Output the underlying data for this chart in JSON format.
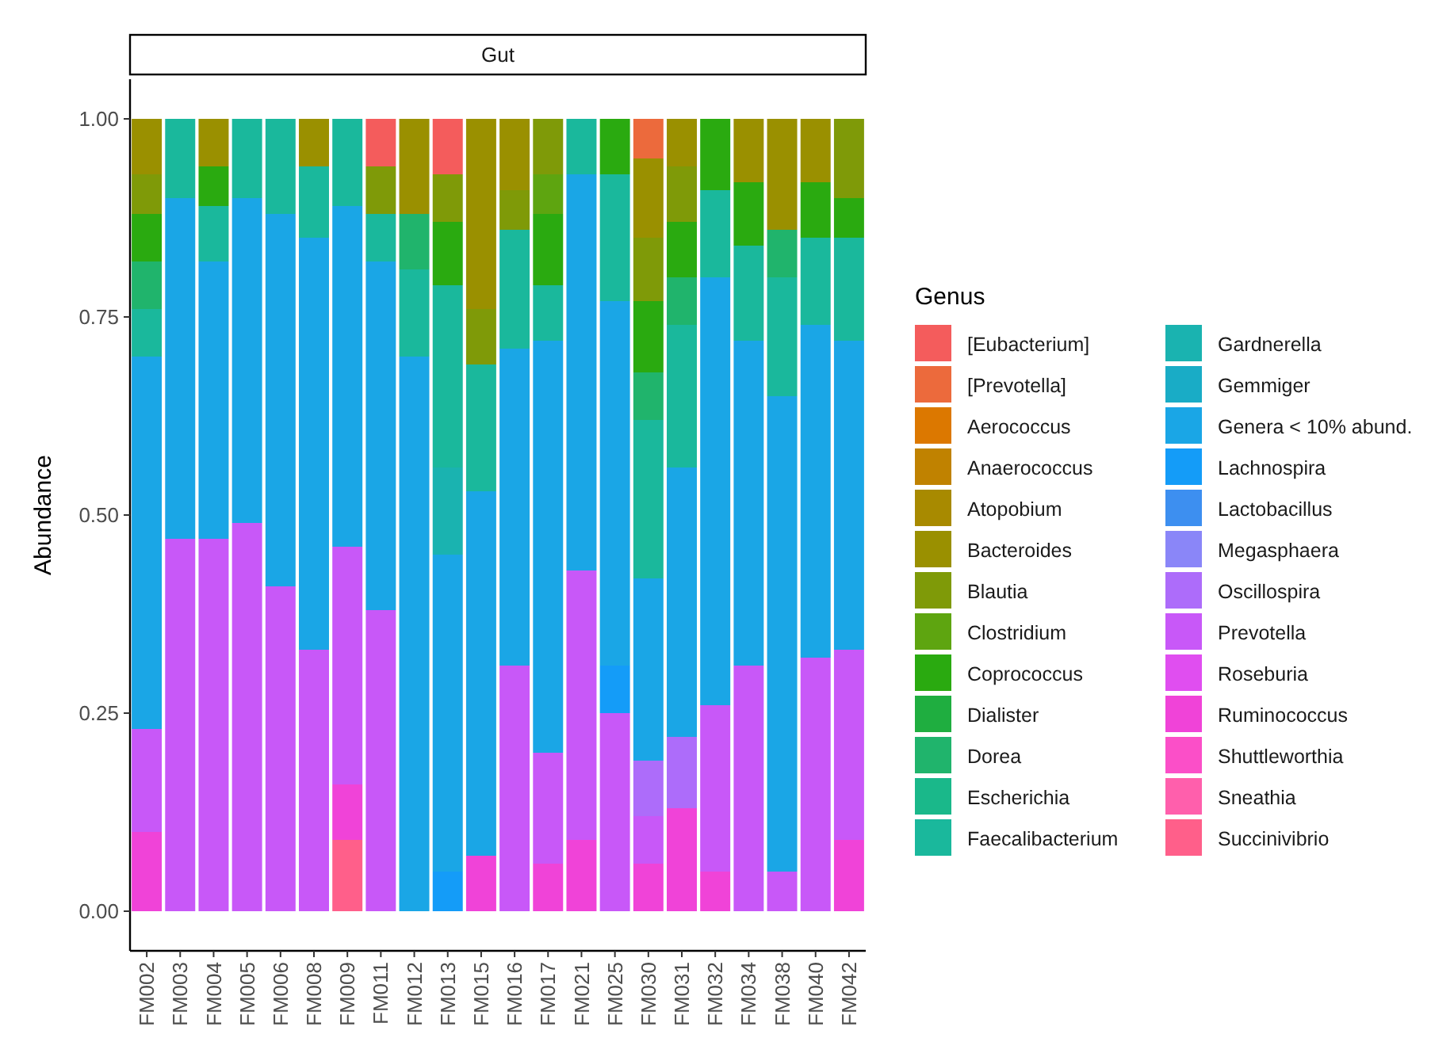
{
  "chart_data": {
    "type": "bar",
    "title": "Gut",
    "ylabel": "Abundance",
    "legend_title": "Genus",
    "legend": "right",
    "stacked": true,
    "categories": [
      "FM002",
      "FM003",
      "FM004",
      "FM005",
      "FM006",
      "FM008",
      "FM009",
      "FM011",
      "FM012",
      "FM013",
      "FM015",
      "FM016",
      "FM017",
      "FM021",
      "FM025",
      "FM030",
      "FM031",
      "FM032",
      "FM034",
      "FM038",
      "FM040",
      "FM042"
    ],
    "ylim": [
      -0.05,
      1.05
    ],
    "yticks": [
      {
        "value": 0,
        "label": "0.00"
      },
      {
        "value": 0.25,
        "label": "0.25"
      },
      {
        "value": 0.5,
        "label": "0.50"
      },
      {
        "value": 0.75,
        "label": "0.75"
      },
      {
        "value": 1,
        "label": "1.00"
      }
    ],
    "series": [
      {
        "name": "Succinivibrio",
        "color": "#ff5f8a",
        "values": [
          null,
          null,
          null,
          null,
          null,
          null,
          0.09,
          null,
          null,
          null,
          null,
          null,
          null,
          null,
          null,
          null,
          null,
          null,
          null,
          null,
          null,
          null
        ]
      },
      {
        "name": "Sneathia",
        "color": "#ff5fac",
        "values": [
          null,
          null,
          null,
          null,
          null,
          null,
          null,
          null,
          null,
          null,
          null,
          null,
          null,
          null,
          null,
          null,
          null,
          null,
          null,
          null,
          null,
          null
        ]
      },
      {
        "name": "Shuttleworthia",
        "color": "#fb4fc8",
        "values": [
          null,
          null,
          null,
          null,
          null,
          null,
          null,
          null,
          null,
          null,
          null,
          null,
          null,
          null,
          null,
          null,
          null,
          null,
          null,
          null,
          null,
          null
        ]
      },
      {
        "name": "Ruminococcus",
        "color": "#f043d8",
        "values": [
          0.1,
          null,
          null,
          null,
          null,
          null,
          0.07,
          null,
          null,
          null,
          0.07,
          null,
          0.06,
          0.09,
          null,
          0.06,
          0.13,
          0.05,
          null,
          null,
          null,
          0.09
        ]
      },
      {
        "name": "Roseburia",
        "color": "#e04ef0",
        "values": [
          null,
          null,
          null,
          null,
          null,
          null,
          null,
          null,
          null,
          null,
          null,
          null,
          null,
          null,
          null,
          null,
          null,
          null,
          null,
          null,
          null,
          null
        ]
      },
      {
        "name": "Prevotella",
        "color": "#c858f8",
        "values": [
          0.13,
          0.47,
          0.47,
          0.49,
          0.41,
          0.33,
          0.3,
          0.38,
          null,
          null,
          null,
          0.31,
          0.14,
          0.34,
          0.25,
          0.06,
          null,
          0.21,
          0.31,
          0.05,
          0.32,
          0.24
        ]
      },
      {
        "name": "Oscillospira",
        "color": "#ad6cfa",
        "values": [
          null,
          null,
          null,
          null,
          null,
          null,
          null,
          null,
          null,
          null,
          null,
          null,
          null,
          null,
          null,
          0.07,
          0.09,
          null,
          null,
          null,
          null,
          null
        ]
      },
      {
        "name": "Megasphaera",
        "color": "#8a86f8",
        "values": [
          null,
          null,
          null,
          null,
          null,
          null,
          null,
          null,
          null,
          null,
          null,
          null,
          null,
          null,
          null,
          null,
          null,
          null,
          null,
          null,
          null,
          null
        ]
      },
      {
        "name": "Lactobacillus",
        "color": "#3d8ff0",
        "values": [
          null,
          null,
          null,
          null,
          null,
          null,
          null,
          null,
          null,
          null,
          null,
          null,
          null,
          null,
          null,
          null,
          null,
          null,
          null,
          null,
          null,
          null
        ]
      },
      {
        "name": "Lachnospira",
        "color": "#149cf8",
        "values": [
          null,
          null,
          null,
          null,
          null,
          null,
          null,
          null,
          null,
          0.05,
          null,
          null,
          null,
          null,
          0.06,
          null,
          null,
          null,
          null,
          null,
          null,
          null
        ]
      },
      {
        "name": "Genera < 10% abund.",
        "color": "#1aa6e6",
        "values": [
          0.47,
          0.43,
          0.35,
          0.41,
          0.47,
          0.52,
          0.43,
          0.44,
          0.7,
          0.4,
          0.46,
          0.4,
          0.52,
          0.5,
          0.46,
          0.23,
          0.34,
          0.54,
          0.41,
          0.6,
          0.42,
          0.39
        ]
      },
      {
        "name": "Gemmiger",
        "color": "#19acc6",
        "values": [
          null,
          null,
          null,
          null,
          null,
          null,
          null,
          null,
          null,
          null,
          null,
          null,
          null,
          null,
          null,
          null,
          null,
          null,
          null,
          null,
          null,
          null
        ]
      },
      {
        "name": "Gardnerella",
        "color": "#1ab3b0",
        "values": [
          null,
          null,
          null,
          null,
          null,
          null,
          null,
          null,
          null,
          0.11,
          null,
          null,
          null,
          null,
          null,
          null,
          null,
          null,
          null,
          null,
          null,
          null
        ]
      },
      {
        "name": "Faecalibacterium",
        "color": "#1ab89c",
        "values": [
          0.06,
          0.1,
          0.07,
          0.1,
          0.12,
          0.09,
          0.11,
          0.06,
          0.11,
          0.23,
          0.16,
          0.15,
          0.07,
          0.07,
          0.16,
          0.2,
          0.18,
          0.11,
          0.12,
          0.15,
          0.11,
          0.13
        ]
      },
      {
        "name": "Escherichia",
        "color": "#1ab88a",
        "values": [
          null,
          null,
          null,
          null,
          null,
          null,
          null,
          null,
          null,
          null,
          null,
          null,
          null,
          null,
          null,
          null,
          null,
          null,
          null,
          null,
          null,
          null
        ]
      },
      {
        "name": "Dorea",
        "color": "#20b46c",
        "values": [
          0.06,
          null,
          null,
          null,
          null,
          null,
          null,
          null,
          0.07,
          null,
          null,
          null,
          null,
          null,
          null,
          0.06,
          0.06,
          null,
          null,
          0.06,
          null,
          null
        ]
      },
      {
        "name": "Dialister",
        "color": "#1fae40",
        "values": [
          null,
          null,
          null,
          null,
          null,
          null,
          null,
          null,
          null,
          null,
          null,
          null,
          null,
          null,
          null,
          null,
          null,
          null,
          null,
          null,
          null,
          null
        ]
      },
      {
        "name": "Coprococcus",
        "color": "#2aaa10",
        "values": [
          0.06,
          null,
          0.05,
          null,
          null,
          null,
          null,
          null,
          null,
          0.08,
          null,
          null,
          0.09,
          null,
          0.07,
          0.09,
          0.07,
          0.09,
          0.08,
          null,
          0.07,
          0.05
        ]
      },
      {
        "name": "Clostridium",
        "color": "#5ea510",
        "values": [
          null,
          null,
          null,
          null,
          null,
          null,
          null,
          null,
          null,
          null,
          null,
          null,
          0.05,
          null,
          null,
          null,
          null,
          null,
          null,
          null,
          null,
          null
        ]
      },
      {
        "name": "Blautia",
        "color": "#7f9a08",
        "values": [
          0.05,
          null,
          null,
          null,
          null,
          null,
          null,
          0.06,
          null,
          0.06,
          0.07,
          0.05,
          0.07,
          null,
          null,
          0.08,
          0.07,
          null,
          null,
          null,
          null,
          0.1
        ]
      },
      {
        "name": "Bacteroides",
        "color": "#9a9000",
        "values": [
          0.07,
          null,
          0.06,
          null,
          null,
          0.06,
          null,
          null,
          0.12,
          null,
          0.24,
          0.09,
          null,
          null,
          null,
          0.1,
          0.06,
          null,
          0.08,
          0.14,
          0.08,
          null
        ]
      },
      {
        "name": "Atopobium",
        "color": "#a88a00",
        "values": [
          null,
          null,
          null,
          null,
          null,
          null,
          null,
          null,
          null,
          null,
          null,
          null,
          null,
          null,
          null,
          null,
          null,
          null,
          null,
          null,
          null,
          null
        ]
      },
      {
        "name": "Anaerococcus",
        "color": "#c08200",
        "values": [
          null,
          null,
          null,
          null,
          null,
          null,
          null,
          null,
          null,
          null,
          null,
          null,
          null,
          null,
          null,
          null,
          null,
          null,
          null,
          null,
          null,
          null
        ]
      },
      {
        "name": "Aerococcus",
        "color": "#dc7800",
        "values": [
          null,
          null,
          null,
          null,
          null,
          null,
          null,
          null,
          null,
          null,
          null,
          null,
          null,
          null,
          null,
          null,
          null,
          null,
          null,
          null,
          null,
          null
        ]
      },
      {
        "name": "[Prevotella]",
        "color": "#ec6a3c",
        "values": [
          null,
          null,
          null,
          null,
          null,
          null,
          null,
          null,
          null,
          null,
          null,
          null,
          null,
          null,
          null,
          0.05,
          null,
          null,
          null,
          null,
          null,
          null
        ]
      },
      {
        "name": "[Eubacterium]",
        "color": "#f45c5c",
        "values": [
          null,
          null,
          null,
          null,
          null,
          null,
          null,
          0.06,
          null,
          0.07,
          null,
          null,
          null,
          null,
          null,
          null,
          null,
          null,
          null,
          null,
          null,
          null
        ]
      }
    ]
  }
}
